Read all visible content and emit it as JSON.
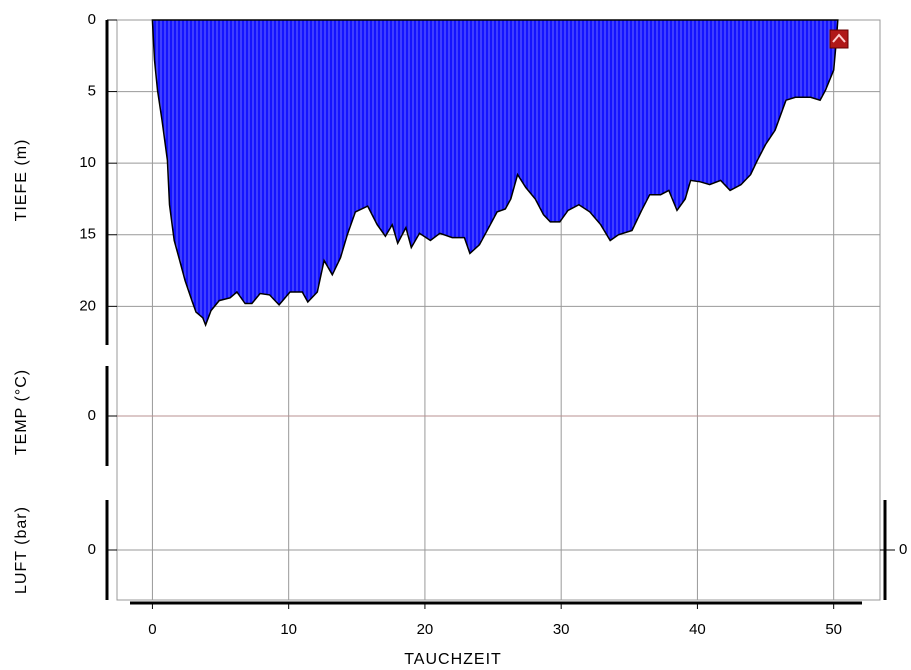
{
  "chart_data": {
    "type": "area",
    "xlabel": "TAUCHZEIT",
    "xlim": [
      -2.6,
      53.4
    ],
    "xticks": [
      0,
      10,
      20,
      30,
      40,
      50
    ],
    "grid": true,
    "series": [
      {
        "color": "#1414ff",
        "x": [
          0,
          0.15,
          0.37,
          0.7,
          1.1,
          1.25,
          1.6,
          2,
          2.4,
          2.9,
          3.2,
          3.7,
          3.9,
          4.3,
          4.9,
          5.7,
          6.2,
          6.8,
          7.3,
          7.9,
          8.6,
          9.3,
          10.1,
          11,
          11.4,
          12.1,
          12.6,
          13.2,
          13.8,
          14.3,
          14.9,
          15.8,
          16.5,
          17.1,
          17.6,
          18,
          18.6,
          19,
          19.6,
          20.4,
          21.1,
          22,
          22.9,
          23.3,
          24,
          24.8,
          25.3,
          25.9,
          26.3,
          26.8,
          27.4,
          28.1,
          28.7,
          29.2,
          29.9,
          30.5,
          31.3,
          32.1,
          32.9,
          33.6,
          34.2,
          35.2,
          35.9,
          36.5,
          37.3,
          37.9,
          38.5,
          39.1,
          39.5,
          40.2,
          40.9,
          41.7,
          42.4,
          43.2,
          43.9,
          44.4,
          45,
          45.7,
          46.5,
          47.2,
          48.3,
          49,
          49.4,
          50,
          50.2,
          50.3
        ],
        "values": [
          0,
          2.8,
          4.9,
          7,
          9.8,
          12.9,
          15.4,
          16.8,
          18.2,
          19.6,
          20.4,
          20.8,
          21.3,
          20.3,
          19.6,
          19.4,
          19,
          19.8,
          19.8,
          19.1,
          19.2,
          19.9,
          19,
          19,
          19.7,
          19,
          16.8,
          17.8,
          16.6,
          15,
          13.4,
          13,
          14.3,
          15.1,
          14.3,
          15.6,
          14.5,
          15.9,
          14.9,
          15.4,
          14.9,
          15.2,
          15.2,
          16.3,
          15.7,
          14.3,
          13.4,
          13.2,
          12.5,
          10.8,
          11.7,
          12.5,
          13.6,
          14.1,
          14.1,
          13.3,
          12.9,
          13.4,
          14.3,
          15.4,
          15,
          14.7,
          13.3,
          12.2,
          12.2,
          11.9,
          13.3,
          12.5,
          11.2,
          11.3,
          11.5,
          11.2,
          11.9,
          11.5,
          10.8,
          9.8,
          8.7,
          7.7,
          5.6,
          5.4,
          5.4,
          5.6,
          4.9,
          3.5,
          1.4,
          0
        ]
      }
    ],
    "panels": {
      "depth": {
        "ylabel": "TIEFE (m)",
        "ylim": [
          0,
          22.7
        ],
        "yticks": [
          0,
          5,
          10,
          15,
          20
        ],
        "inverted": true
      },
      "temp": {
        "ylabel": "TEMP (°C)",
        "ylim": [
          -1,
          1
        ],
        "yticks": [
          0
        ],
        "zero_color": "#b89090"
      },
      "air": {
        "ylabel": "LUFT (bar)",
        "ylim": [
          -1,
          1
        ],
        "yticks": [
          0
        ],
        "y2ticks": [
          0
        ]
      }
    }
  }
}
